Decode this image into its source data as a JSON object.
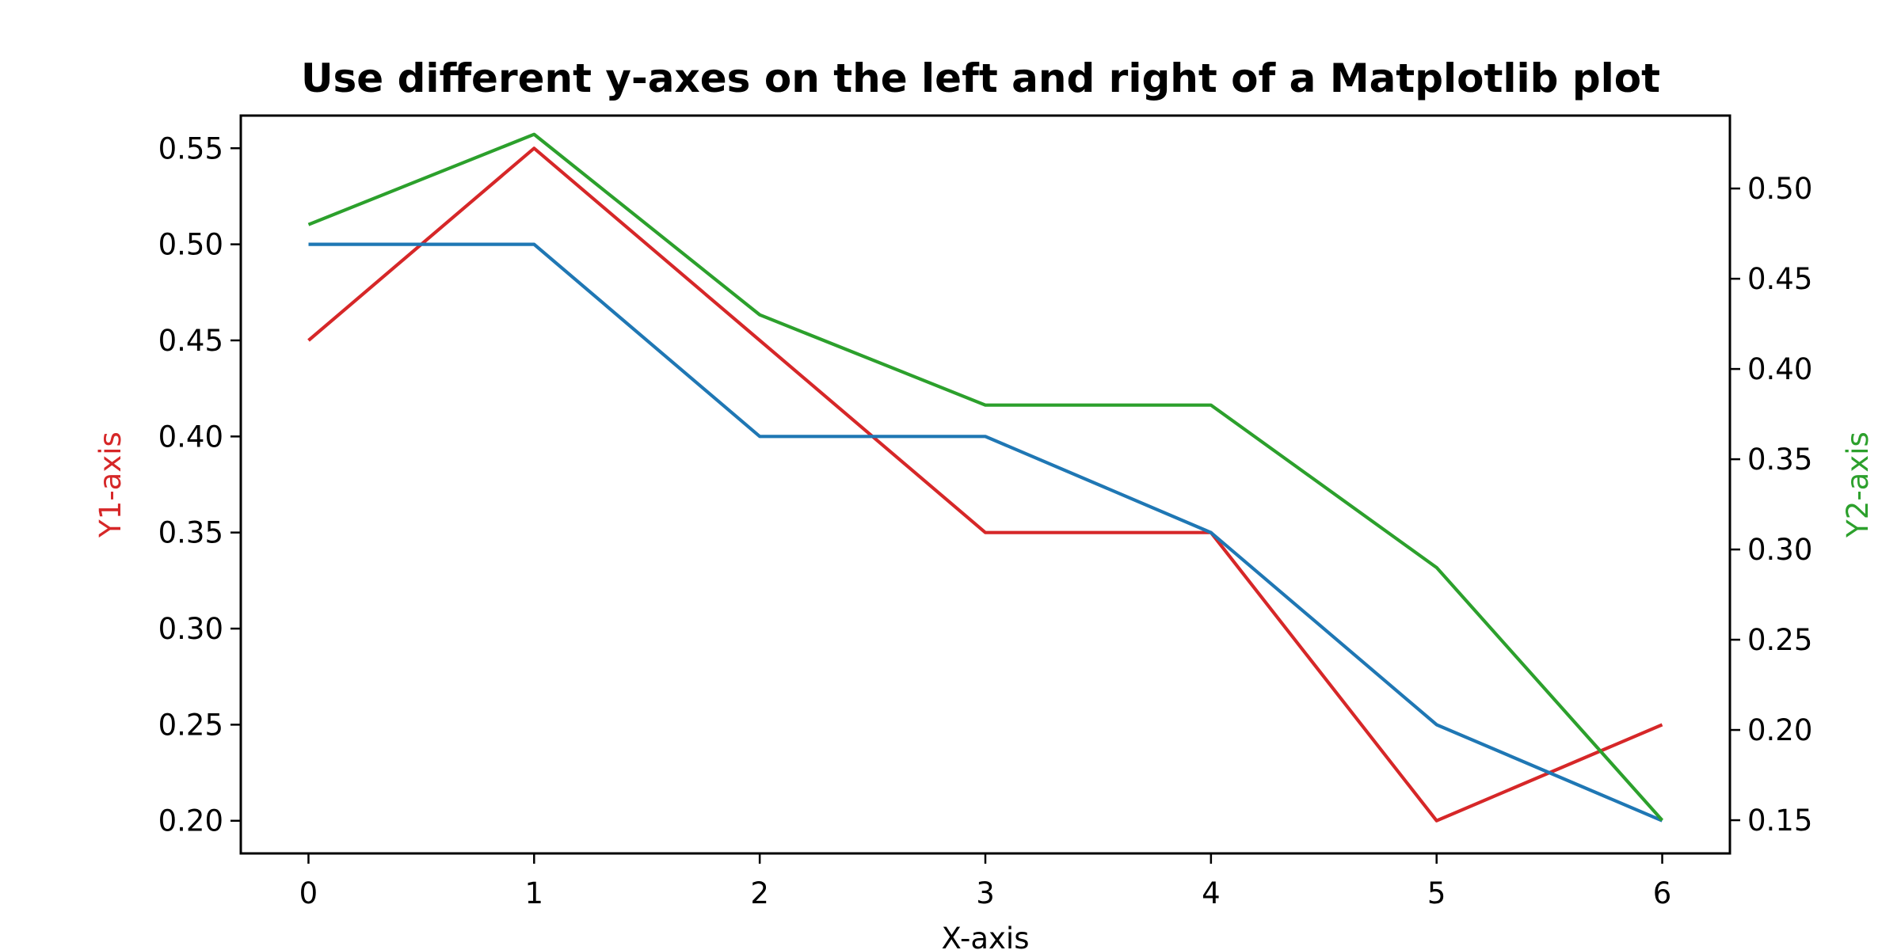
{
  "chart_data": {
    "type": "line",
    "title": "Use different y-axes on the left and right of a Matplotlib plot",
    "xlabel": "X-axis",
    "ylabel_left": "Y1-axis",
    "ylabel_right": "Y2-axis",
    "ylabel_left_color": "#d62728",
    "ylabel_right_color": "#2ca02c",
    "x": [
      0,
      1,
      2,
      3,
      4,
      5,
      6
    ],
    "xlim": [
      -0.3,
      6.3
    ],
    "x_ticks": [
      0,
      1,
      2,
      3,
      4,
      5,
      6
    ],
    "ylim_left": [
      0.183,
      0.567
    ],
    "y_ticks_left": [
      "0.20",
      "0.25",
      "0.30",
      "0.35",
      "0.40",
      "0.45",
      "0.50",
      "0.55"
    ],
    "ylim_right": [
      0.1316,
      0.5404
    ],
    "y_ticks_right": [
      "0.15",
      "0.20",
      "0.25",
      "0.30",
      "0.35",
      "0.40",
      "0.45",
      "0.50"
    ],
    "grid": false,
    "series": [
      {
        "axis": "left",
        "color": "#d62728",
        "values": [
          0.45,
          0.55,
          0.45,
          0.35,
          0.35,
          0.2,
          0.25
        ]
      },
      {
        "axis": "left",
        "color": "#1f77b4",
        "values": [
          0.5,
          0.5,
          0.4,
          0.4,
          0.35,
          0.25,
          0.2
        ]
      },
      {
        "axis": "right",
        "color": "#2ca02c",
        "values": [
          0.48,
          0.53,
          0.43,
          0.38,
          0.38,
          0.29,
          0.15
        ]
      }
    ]
  }
}
